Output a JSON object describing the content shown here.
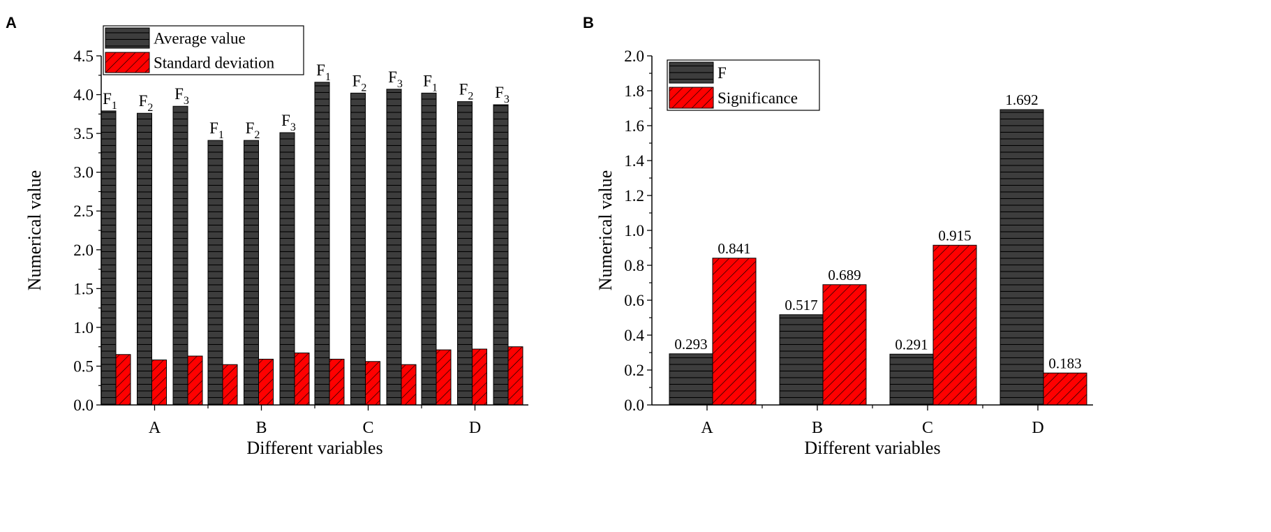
{
  "chart_data": [
    {
      "panel_label": "A",
      "type": "bar",
      "title": "",
      "xlabel": "Different variables",
      "ylabel": "Numerical value",
      "ylim": [
        0,
        4.5
      ],
      "yticks": [
        "0.0",
        "0.5",
        "1.0",
        "1.5",
        "2.0",
        "2.5",
        "3.0",
        "3.5",
        "4.0",
        "4.5"
      ],
      "categories": [
        "A",
        "B",
        "C",
        "D"
      ],
      "subgroups": [
        "F1",
        "F2",
        "F3"
      ],
      "subgroup_labels": [
        {
          "base": "F",
          "sub": "1"
        },
        {
          "base": "F",
          "sub": "2"
        },
        {
          "base": "F",
          "sub": "3"
        }
      ],
      "series": [
        {
          "name": "Average value",
          "color": "#3d3d3d",
          "pattern": "horizontal-lines",
          "values": [
            [
              3.79,
              3.76,
              3.85
            ],
            [
              3.41,
              3.41,
              3.51
            ],
            [
              4.16,
              4.02,
              4.07
            ],
            [
              4.02,
              3.91,
              3.87
            ]
          ]
        },
        {
          "name": "Standard deviation",
          "color": "#ff0000",
          "pattern": "diagonal-hatch",
          "values": [
            [
              0.65,
              0.58,
              0.63
            ],
            [
              0.52,
              0.59,
              0.67
            ],
            [
              0.59,
              0.56,
              0.52
            ],
            [
              0.71,
              0.72,
              0.75
            ]
          ]
        }
      ],
      "legend": "top-left"
    },
    {
      "panel_label": "B",
      "type": "bar",
      "title": "",
      "xlabel": "Different variables",
      "ylabel": "Numerical value",
      "ylim": [
        0,
        2.0
      ],
      "yticks": [
        "0.0",
        "0.2",
        "0.4",
        "0.6",
        "0.8",
        "1.0",
        "1.2",
        "1.4",
        "1.6",
        "1.8",
        "2.0"
      ],
      "categories": [
        "A",
        "B",
        "C",
        "D"
      ],
      "series": [
        {
          "name": "F",
          "color": "#3d3d3d",
          "pattern": "horizontal-lines",
          "values": [
            0.293,
            0.517,
            0.291,
            1.692
          ],
          "labels": [
            "0.293",
            "0.517",
            "0.291",
            "1.692"
          ]
        },
        {
          "name": "Significance",
          "color": "#ff0000",
          "pattern": "diagonal-hatch",
          "values": [
            0.841,
            0.689,
            0.915,
            0.183
          ],
          "labels": [
            "0.841",
            "0.689",
            "0.915",
            "0.183"
          ]
        }
      ],
      "legend": "top-left"
    }
  ]
}
